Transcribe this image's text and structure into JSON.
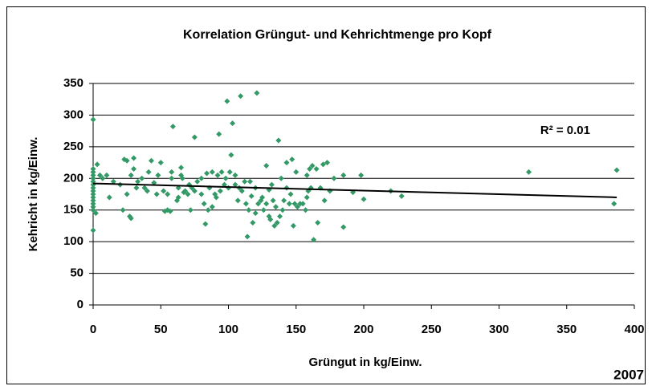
{
  "chart_data": {
    "type": "scatter",
    "title": "Korrelation Grüngut- und Kehrichtmenge pro Kopf",
    "x_label": "Grüngut in kg/Einw.",
    "y_label": "Kehricht in kg/Einw.",
    "annotation": "R² = 0.01",
    "corner_label": "2007",
    "color": "#339966",
    "x": [
      0,
      0,
      0,
      0,
      0,
      0,
      0,
      0,
      0,
      0,
      0,
      0,
      0,
      0,
      0,
      0,
      2,
      3,
      5,
      7,
      10,
      12,
      15,
      20,
      22,
      23,
      25,
      25,
      27,
      28,
      28,
      30,
      30,
      32,
      33,
      36,
      38,
      40,
      41,
      43,
      45,
      47,
      48,
      50,
      52,
      53,
      55,
      55,
      57,
      58,
      58,
      59,
      62,
      63,
      63,
      65,
      65,
      66,
      67,
      68,
      70,
      71,
      72,
      73,
      75,
      75,
      77,
      80,
      80,
      82,
      83,
      84,
      85,
      86,
      88,
      88,
      90,
      91,
      92,
      93,
      94,
      95,
      97,
      98,
      99,
      100,
      101,
      102,
      103,
      105,
      105,
      107,
      108,
      109,
      110,
      112,
      113,
      114,
      115,
      116,
      117,
      118,
      120,
      120,
      121,
      122,
      124,
      125,
      126,
      128,
      128,
      130,
      130,
      131,
      132,
      133,
      134,
      135,
      136,
      137,
      138,
      139,
      140,
      141,
      143,
      143,
      145,
      146,
      147,
      148,
      149,
      150,
      151,
      153,
      155,
      157,
      158,
      158,
      159,
      160,
      161,
      162,
      163,
      165,
      166,
      168,
      170,
      171,
      173,
      175,
      178,
      185,
      185,
      192,
      198,
      200,
      220,
      228,
      322,
      385,
      387
    ],
    "values": [
      293,
      118,
      215,
      210,
      205,
      200,
      195,
      190,
      185,
      180,
      175,
      170,
      165,
      160,
      155,
      150,
      145,
      222,
      205,
      200,
      205,
      170,
      195,
      190,
      150,
      230,
      228,
      175,
      140,
      137,
      205,
      215,
      232,
      185,
      195,
      200,
      185,
      180,
      210,
      228,
      193,
      175,
      205,
      225,
      180,
      148,
      150,
      175,
      148,
      200,
      210,
      282,
      165,
      185,
      170,
      205,
      217,
      200,
      178,
      180,
      175,
      190,
      150,
      185,
      265,
      180,
      195,
      200,
      175,
      160,
      128,
      208,
      150,
      185,
      210,
      155,
      175,
      170,
      205,
      270,
      180,
      210,
      190,
      200,
      322,
      185,
      210,
      237,
      287,
      205,
      190,
      165,
      185,
      330,
      180,
      195,
      160,
      108,
      150,
      195,
      172,
      130,
      145,
      185,
      335,
      160,
      165,
      170,
      150,
      160,
      220,
      182,
      140,
      135,
      190,
      165,
      125,
      155,
      130,
      260,
      140,
      200,
      150,
      165,
      185,
      225,
      160,
      175,
      230,
      125,
      160,
      210,
      155,
      160,
      160,
      150,
      170,
      205,
      180,
      215,
      185,
      220,
      103,
      215,
      130,
      185,
      222,
      165,
      225,
      180,
      200,
      205,
      123,
      178,
      205,
      167,
      180,
      172,
      210,
      160,
      213
    ],
    "trendline": {
      "x": [
        0,
        387
      ],
      "values": [
        192,
        170
      ],
      "color": "#000000"
    },
    "xlim": [
      0,
      400
    ],
    "xticks": [
      0,
      50,
      100,
      150,
      200,
      250,
      300,
      350,
      400
    ],
    "ylim": [
      0,
      350
    ],
    "yticks": [
      0,
      50,
      100,
      150,
      200,
      250,
      300,
      350
    ],
    "grid": true
  }
}
